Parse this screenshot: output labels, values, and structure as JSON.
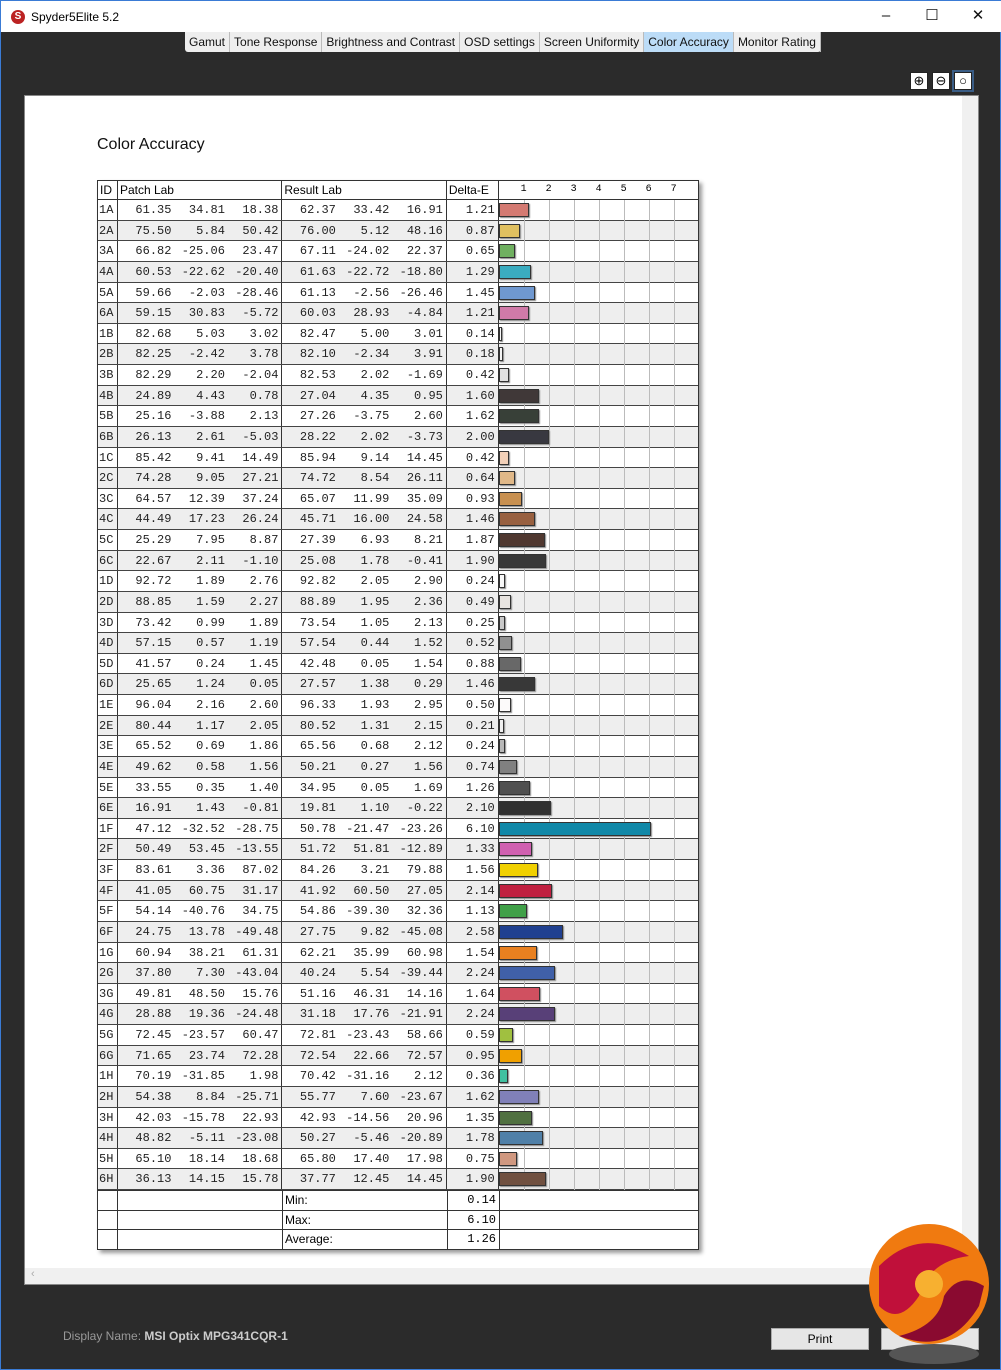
{
  "window": {
    "title": "Spyder5Elite 5.2",
    "icon": "spyder-logo-icon"
  },
  "tabs": [
    "Gamut",
    "Tone Response",
    "Brightness and Contrast",
    "OSD settings",
    "Screen Uniformity",
    "Color Accuracy",
    "Monitor Rating"
  ],
  "active_tab": "Color Accuracy",
  "zoom_icons": [
    "zoom-in-icon",
    "zoom-out-icon",
    "zoom-fit-icon"
  ],
  "report": {
    "heading": "Color Accuracy",
    "columns": {
      "id": "ID",
      "patch": "Patch Lab",
      "result": "Result Lab",
      "delta": "Delta-E"
    },
    "axis_ticks": [
      "1",
      "2",
      "3",
      "4",
      "5",
      "6",
      "7"
    ],
    "rows": [
      [
        "1A",
        "61.35",
        "34.81",
        "18.38",
        "62.37",
        "33.42",
        "16.91",
        "1.21",
        "#d47a72"
      ],
      [
        "2A",
        "75.50",
        "5.84",
        "50.42",
        "76.00",
        "5.12",
        "48.16",
        "0.87",
        "#e0c060"
      ],
      [
        "3A",
        "66.82",
        "-25.06",
        "23.47",
        "67.11",
        "-24.02",
        "22.37",
        "0.65",
        "#6fb060"
      ],
      [
        "4A",
        "60.53",
        "-22.62",
        "-20.40",
        "61.63",
        "-22.72",
        "-18.80",
        "1.29",
        "#3aacc0"
      ],
      [
        "5A",
        "59.66",
        "-2.03",
        "-28.46",
        "61.13",
        "-2.56",
        "-26.46",
        "1.45",
        "#6f98d0"
      ],
      [
        "6A",
        "59.15",
        "30.83",
        "-5.72",
        "60.03",
        "28.93",
        "-4.84",
        "1.21",
        "#d07aa8"
      ],
      [
        "1B",
        "82.68",
        "5.03",
        "3.02",
        "82.47",
        "5.00",
        "3.01",
        "0.14",
        "#fafafa"
      ],
      [
        "2B",
        "82.25",
        "-2.42",
        "3.78",
        "82.10",
        "-2.34",
        "3.91",
        "0.18",
        "#f4f4f4"
      ],
      [
        "3B",
        "82.29",
        "2.20",
        "-2.04",
        "82.53",
        "2.02",
        "-1.69",
        "0.42",
        "#e0e0e0"
      ],
      [
        "4B",
        "24.89",
        "4.43",
        "0.78",
        "27.04",
        "4.35",
        "0.95",
        "1.60",
        "#403838"
      ],
      [
        "5B",
        "25.16",
        "-3.88",
        "2.13",
        "27.26",
        "-3.75",
        "2.60",
        "1.62",
        "#384038"
      ],
      [
        "6B",
        "26.13",
        "2.61",
        "-5.03",
        "28.22",
        "2.02",
        "-3.73",
        "2.00",
        "#383840"
      ],
      [
        "1C",
        "85.42",
        "9.41",
        "14.49",
        "85.94",
        "9.14",
        "14.45",
        "0.42",
        "#f2d0b8"
      ],
      [
        "2C",
        "74.28",
        "9.05",
        "27.21",
        "74.72",
        "8.54",
        "26.11",
        "0.64",
        "#e0b888"
      ],
      [
        "3C",
        "64.57",
        "12.39",
        "37.24",
        "65.07",
        "11.99",
        "35.09",
        "0.93",
        "#c89050"
      ],
      [
        "4C",
        "44.49",
        "17.23",
        "26.24",
        "45.71",
        "16.00",
        "24.58",
        "1.46",
        "#986040"
      ],
      [
        "5C",
        "25.29",
        "7.95",
        "8.87",
        "27.39",
        "6.93",
        "8.21",
        "1.87",
        "#503830"
      ],
      [
        "6C",
        "22.67",
        "2.11",
        "-1.10",
        "25.08",
        "1.78",
        "-0.41",
        "1.90",
        "#383838"
      ],
      [
        "1D",
        "92.72",
        "1.89",
        "2.76",
        "92.82",
        "2.05",
        "2.90",
        "0.24",
        "#f8f8f8"
      ],
      [
        "2D",
        "88.85",
        "1.59",
        "2.27",
        "88.89",
        "1.95",
        "2.36",
        "0.49",
        "#e8e4e0"
      ],
      [
        "3D",
        "73.42",
        "0.99",
        "1.89",
        "73.54",
        "1.05",
        "2.13",
        "0.25",
        "#c8c8c8"
      ],
      [
        "4D",
        "57.15",
        "0.57",
        "1.19",
        "57.54",
        "0.44",
        "1.52",
        "0.52",
        "#909090"
      ],
      [
        "5D",
        "41.57",
        "0.24",
        "1.45",
        "42.48",
        "0.05",
        "1.54",
        "0.88",
        "#686868"
      ],
      [
        "6D",
        "25.65",
        "1.24",
        "0.05",
        "27.57",
        "1.38",
        "0.29",
        "1.46",
        "#383838"
      ],
      [
        "1E",
        "96.04",
        "2.16",
        "2.60",
        "96.33",
        "1.93",
        "2.95",
        "0.50",
        "#fcfafa"
      ],
      [
        "2E",
        "80.44",
        "1.17",
        "2.05",
        "80.52",
        "1.31",
        "2.15",
        "0.21",
        "#f0f0f0"
      ],
      [
        "3E",
        "65.52",
        "0.69",
        "1.86",
        "65.56",
        "0.68",
        "2.12",
        "0.24",
        "#b8b8b8"
      ],
      [
        "4E",
        "49.62",
        "0.58",
        "1.56",
        "50.21",
        "0.27",
        "1.56",
        "0.74",
        "#808080"
      ],
      [
        "5E",
        "33.55",
        "0.35",
        "1.40",
        "34.95",
        "0.05",
        "1.69",
        "1.26",
        "#505050"
      ],
      [
        "6E",
        "16.91",
        "1.43",
        "-0.81",
        "19.81",
        "1.10",
        "-0.22",
        "2.10",
        "#303030"
      ],
      [
        "1F",
        "47.12",
        "-32.52",
        "-28.75",
        "50.78",
        "-21.47",
        "-23.26",
        "6.10",
        "#1088a8"
      ],
      [
        "2F",
        "50.49",
        "53.45",
        "-13.55",
        "51.72",
        "51.81",
        "-12.89",
        "1.33",
        "#d060b0"
      ],
      [
        "3F",
        "83.61",
        "3.36",
        "87.02",
        "84.26",
        "3.21",
        "79.88",
        "1.56",
        "#f0d000"
      ],
      [
        "4F",
        "41.05",
        "60.75",
        "31.17",
        "41.92",
        "60.50",
        "27.05",
        "2.14",
        "#c02040"
      ],
      [
        "5F",
        "54.14",
        "-40.76",
        "34.75",
        "54.86",
        "-39.30",
        "32.36",
        "1.13",
        "#40a048"
      ],
      [
        "6F",
        "24.75",
        "13.78",
        "-49.48",
        "27.75",
        "9.82",
        "-45.08",
        "2.58",
        "#204090"
      ],
      [
        "1G",
        "60.94",
        "38.21",
        "61.31",
        "62.21",
        "35.99",
        "60.98",
        "1.54",
        "#e88020"
      ],
      [
        "2G",
        "37.80",
        "7.30",
        "-43.04",
        "40.24",
        "5.54",
        "-39.44",
        "2.24",
        "#4060a8"
      ],
      [
        "3G",
        "49.81",
        "48.50",
        "15.76",
        "51.16",
        "46.31",
        "14.16",
        "1.64",
        "#d05060"
      ],
      [
        "4G",
        "28.88",
        "19.36",
        "-24.48",
        "31.18",
        "17.76",
        "-21.91",
        "2.24",
        "#584078"
      ],
      [
        "5G",
        "72.45",
        "-23.57",
        "60.47",
        "72.81",
        "-23.43",
        "58.66",
        "0.59",
        "#a0c040"
      ],
      [
        "6G",
        "71.65",
        "23.74",
        "72.28",
        "72.54",
        "22.66",
        "72.57",
        "0.95",
        "#f0a000"
      ],
      [
        "1H",
        "70.19",
        "-31.85",
        "1.98",
        "70.42",
        "-31.16",
        "2.12",
        "0.36",
        "#40c0a0"
      ],
      [
        "2H",
        "54.38",
        "8.84",
        "-25.71",
        "55.77",
        "7.60",
        "-23.67",
        "1.62",
        "#8080b8"
      ],
      [
        "3H",
        "42.03",
        "-15.78",
        "22.93",
        "42.93",
        "-14.56",
        "20.96",
        "1.35",
        "#507040"
      ],
      [
        "4H",
        "48.82",
        "-5.11",
        "-23.08",
        "50.27",
        "-5.46",
        "-20.89",
        "1.78",
        "#5080a8"
      ],
      [
        "5H",
        "65.10",
        "18.14",
        "18.68",
        "65.80",
        "17.40",
        "17.98",
        "0.75",
        "#d09880"
      ],
      [
        "6H",
        "36.13",
        "14.15",
        "15.78",
        "37.77",
        "12.45",
        "14.45",
        "1.90",
        "#705040"
      ]
    ],
    "summary": [
      {
        "label": "Min:",
        "value": "0.14"
      },
      {
        "label": "Max:",
        "value": "6.10"
      },
      {
        "label": "Average:",
        "value": "1.26"
      }
    ]
  },
  "footer": {
    "display_label": "Display Name:",
    "display_name": "MSI Optix MPG341CQR-1",
    "print_label": "Print"
  }
}
